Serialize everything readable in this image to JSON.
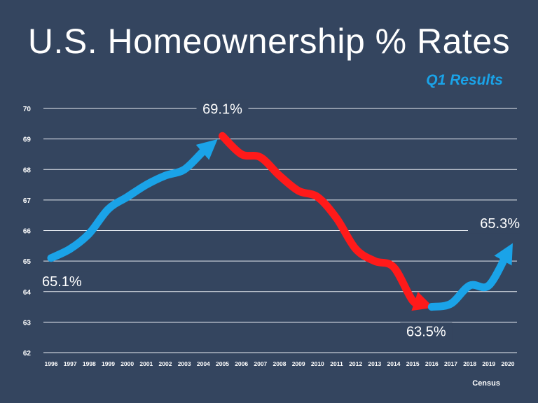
{
  "title": "U.S. Homeownership % Rates",
  "subtitle": "Q1 Results",
  "source": "Census",
  "colors": {
    "background": "#34455f",
    "rising": "#1aa3e8",
    "falling": "#ff1a1a",
    "grid": "#e8ecf2"
  },
  "chart_data": {
    "type": "line",
    "title": "U.S. Homeownership % Rates",
    "subtitle": "Q1 Results",
    "x": [
      "1996",
      "1997",
      "1998",
      "1999",
      "2000",
      "2001",
      "2002",
      "2003",
      "2004",
      "2005",
      "2006",
      "2007",
      "2008",
      "2009",
      "2010",
      "2011",
      "2012",
      "2013",
      "2014",
      "2015",
      "2016",
      "2017",
      "2018",
      "2019",
      "2020"
    ],
    "y": [
      65.1,
      65.4,
      65.9,
      66.7,
      67.1,
      67.5,
      67.8,
      68.0,
      68.6,
      69.1,
      68.5,
      68.4,
      67.8,
      67.3,
      67.1,
      66.4,
      65.4,
      65.0,
      64.8,
      63.7,
      63.5,
      63.6,
      64.2,
      64.2,
      65.3
    ],
    "segments": [
      {
        "trend": "rising",
        "from": "1996",
        "to": "2004",
        "color": "#1aa3e8"
      },
      {
        "trend": "falling",
        "from": "2005",
        "to": "2015",
        "color": "#ff1a1a"
      },
      {
        "trend": "rising",
        "from": "2016",
        "to": "2020",
        "color": "#1aa3e8"
      }
    ],
    "ylim": [
      62,
      70
    ],
    "yticks": [
      62,
      63,
      64,
      65,
      66,
      67,
      68,
      69,
      70
    ],
    "grid": true,
    "xlabel": "",
    "ylabel": "",
    "annotations": [
      {
        "text": "65.1%",
        "x": "1996",
        "y": 65.1,
        "anchor": "below"
      },
      {
        "text": "69.1%",
        "x": "2005",
        "y": 69.1,
        "anchor": "above"
      },
      {
        "text": "63.5%",
        "x": "2016",
        "y": 63.5,
        "anchor": "below"
      },
      {
        "text": "65.3%",
        "x": "2020",
        "y": 65.3,
        "anchor": "above"
      }
    ]
  }
}
